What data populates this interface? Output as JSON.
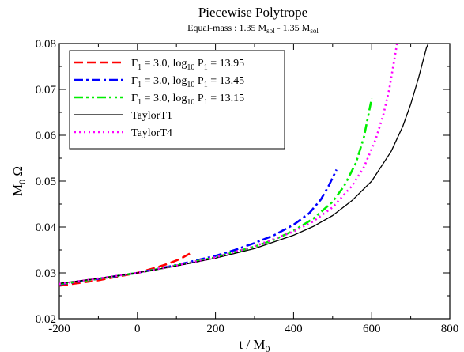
{
  "chart_data": {
    "type": "line",
    "title": "Piecewise Polytrope",
    "subtitle": "Equal-mass : 1.35 M_sol - 1.35 M_sol",
    "subtitle_parts": {
      "prefix": "Equal-mass : 1.35 M",
      "sub1": "sol",
      "mid": " - 1.35 M",
      "sub2": "sol"
    },
    "xlabel": "t / M_0",
    "xlabel_parts": {
      "main": "t / M",
      "sub": "0"
    },
    "ylabel": "M_0 Ω",
    "ylabel_parts": {
      "main1": "M",
      "sub": "0",
      "main2": " Ω"
    },
    "xlim": [
      -200,
      800
    ],
    "ylim": [
      0.02,
      0.08
    ],
    "xticks": [
      -200,
      0,
      200,
      400,
      600,
      800
    ],
    "xtick_labels": [
      "-200",
      "0",
      "200",
      "400",
      "600",
      "800"
    ],
    "yticks": [
      0.02,
      0.03,
      0.04,
      0.05,
      0.06,
      0.07,
      0.08
    ],
    "ytick_labels": [
      "0.02",
      "0.03",
      "0.04",
      "0.05",
      "0.06",
      "0.07",
      "0.08"
    ],
    "grid": false,
    "legend_position": "top-left",
    "series": [
      {
        "name": "Γ1 = 3.0, log10 P1 = 13.95",
        "label_parts": {
          "g": "Γ",
          "gsub": "1",
          "eq": " = 3.0,  log",
          "lsub": "10",
          "p": " P",
          "psub": "1",
          "val": " = 13.95"
        },
        "color": "#ff0000",
        "style": "dash",
        "x": [
          -200,
          -150,
          -100,
          -50,
          0,
          25,
          50,
          75,
          100,
          115,
          130,
          140
        ],
        "y": [
          0.0272,
          0.0278,
          0.0284,
          0.0292,
          0.03,
          0.0306,
          0.0312,
          0.0319,
          0.0327,
          0.0333,
          0.034,
          0.0345
        ]
      },
      {
        "name": "Γ1 = 3.0, log10 P1 = 13.45",
        "label_parts": {
          "g": "Γ",
          "gsub": "1",
          "eq": " = 3.0,  log",
          "lsub": "10",
          "p": " P",
          "psub": "1",
          "val": " = 13.45"
        },
        "color": "#0000ff",
        "style": "dashdot",
        "x": [
          -200,
          -100,
          0,
          100,
          200,
          250,
          300,
          350,
          400,
          440,
          470,
          490,
          510
        ],
        "y": [
          0.0275,
          0.0287,
          0.03,
          0.0317,
          0.0337,
          0.035,
          0.0365,
          0.0382,
          0.0405,
          0.043,
          0.046,
          0.049,
          0.0525
        ]
      },
      {
        "name": "Γ1 = 3.0, log10 P1 = 13.15",
        "label_parts": {
          "g": "Γ",
          "gsub": "1",
          "eq": " = 3.0,  log",
          "lsub": "10",
          "p": " P",
          "psub": "1",
          "val": " = 13.15"
        },
        "color": "#00ee00",
        "style": "dashdotdot",
        "x": [
          -200,
          -100,
          0,
          100,
          200,
          300,
          350,
          400,
          450,
          500,
          530,
          560,
          580,
          600
        ],
        "y": [
          0.0276,
          0.0287,
          0.03,
          0.0316,
          0.0334,
          0.0357,
          0.0372,
          0.0392,
          0.0418,
          0.0455,
          0.049,
          0.054,
          0.0595,
          0.068
        ]
      },
      {
        "name": "TaylorT1",
        "label_parts": {
          "text": "TaylorT1"
        },
        "color": "#000000",
        "style": "solid",
        "x": [
          -200,
          -100,
          0,
          100,
          200,
          300,
          400,
          450,
          500,
          550,
          600,
          650,
          680,
          700,
          720,
          740,
          750
        ],
        "y": [
          0.0277,
          0.0288,
          0.03,
          0.0315,
          0.0332,
          0.0353,
          0.0382,
          0.0401,
          0.0425,
          0.0458,
          0.05,
          0.0565,
          0.062,
          0.0668,
          0.0725,
          0.079,
          0.081
        ]
      },
      {
        "name": "TaylorT4",
        "label_parts": {
          "text": "TaylorT4"
        },
        "color": "#ff00ff",
        "style": "dot",
        "x": [
          -200,
          -100,
          0,
          100,
          200,
          300,
          400,
          450,
          500,
          550,
          580,
          610,
          630,
          645,
          655,
          665
        ],
        "y": [
          0.0276,
          0.0288,
          0.03,
          0.0316,
          0.0334,
          0.0358,
          0.039,
          0.0412,
          0.0443,
          0.049,
          0.053,
          0.059,
          0.0645,
          0.07,
          0.075,
          0.08
        ]
      }
    ]
  }
}
